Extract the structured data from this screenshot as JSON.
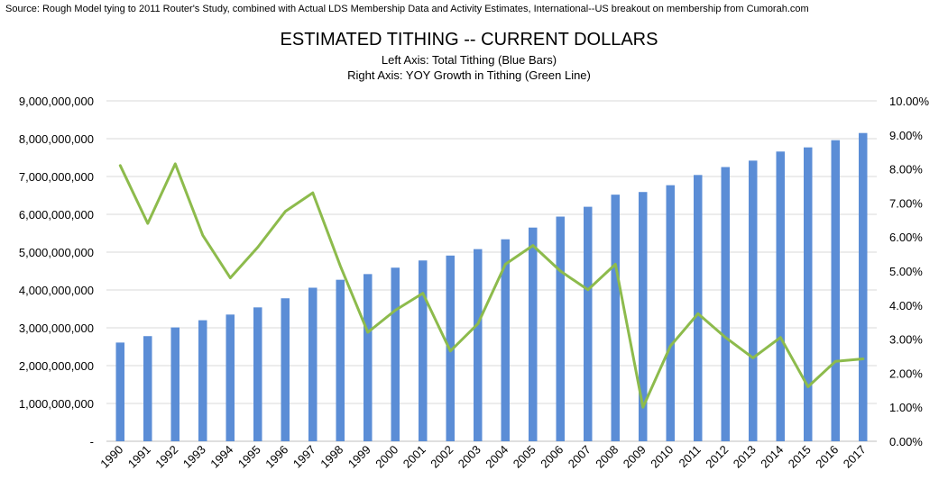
{
  "chart_data": {
    "type": "bar",
    "source": "Source: Rough Model tying to 2011 Router's Study, combined with Actual LDS Membership Data and Activity Estimates, International--US breakout on membership from Cumorah.com",
    "title": "ESTIMATED TITHING -- CURRENT DOLLARS",
    "subtitles": [
      "Left Axis: Total Tithing (Blue Bars)",
      "Right Axis: YOY Growth in Tithing (Green Line)"
    ],
    "categories": [
      "1990",
      "1991",
      "1992",
      "1993",
      "1994",
      "1995",
      "1996",
      "1997",
      "1998",
      "1999",
      "2000",
      "2001",
      "2002",
      "2003",
      "2004",
      "2005",
      "2006",
      "2007",
      "2008",
      "2009",
      "2010",
      "2011",
      "2012",
      "2013",
      "2014",
      "2015",
      "2016",
      "2017"
    ],
    "left_axis": {
      "ylim": [
        0,
        9000000000
      ],
      "ticks": [
        0,
        1000000000,
        2000000000,
        3000000000,
        4000000000,
        5000000000,
        6000000000,
        7000000000,
        8000000000,
        9000000000
      ],
      "tick_labels": [
        "-",
        "1,000,000,000",
        "2,000,000,000",
        "3,000,000,000",
        "4,000,000,000",
        "5,000,000,000",
        "6,000,000,000",
        "7,000,000,000",
        "8,000,000,000",
        "9,000,000,000"
      ]
    },
    "right_axis": {
      "ylim": [
        0,
        10
      ],
      "ticks": [
        0,
        1,
        2,
        3,
        4,
        5,
        6,
        7,
        8,
        9,
        10
      ],
      "tick_labels": [
        "0.00%",
        "1.00%",
        "2.00%",
        "3.00%",
        "4.00%",
        "5.00%",
        "6.00%",
        "7.00%",
        "8.00%",
        "9.00%",
        "10.00%"
      ]
    },
    "grid": true,
    "series": [
      {
        "type": "bar",
        "axis": "left",
        "color": "#5B8DD6",
        "values": [
          2610000000,
          2780000000,
          3010000000,
          3200000000,
          3350000000,
          3540000000,
          3780000000,
          4060000000,
          4270000000,
          4420000000,
          4590000000,
          4780000000,
          4910000000,
          5080000000,
          5340000000,
          5650000000,
          5940000000,
          6200000000,
          6520000000,
          6590000000,
          6770000000,
          7040000000,
          7250000000,
          7420000000,
          7660000000,
          7770000000,
          7960000000,
          8150000000
        ]
      },
      {
        "type": "line",
        "axis": "right",
        "color": "#8DBB4C",
        "values": [
          8.1,
          6.4,
          8.15,
          6.05,
          4.8,
          5.7,
          6.75,
          7.3,
          5.15,
          3.2,
          3.85,
          4.35,
          2.65,
          3.45,
          5.2,
          5.75,
          5.0,
          4.45,
          5.2,
          1.0,
          2.8,
          3.75,
          3.05,
          2.45,
          3.05,
          1.6,
          2.35,
          2.42
        ]
      }
    ]
  }
}
